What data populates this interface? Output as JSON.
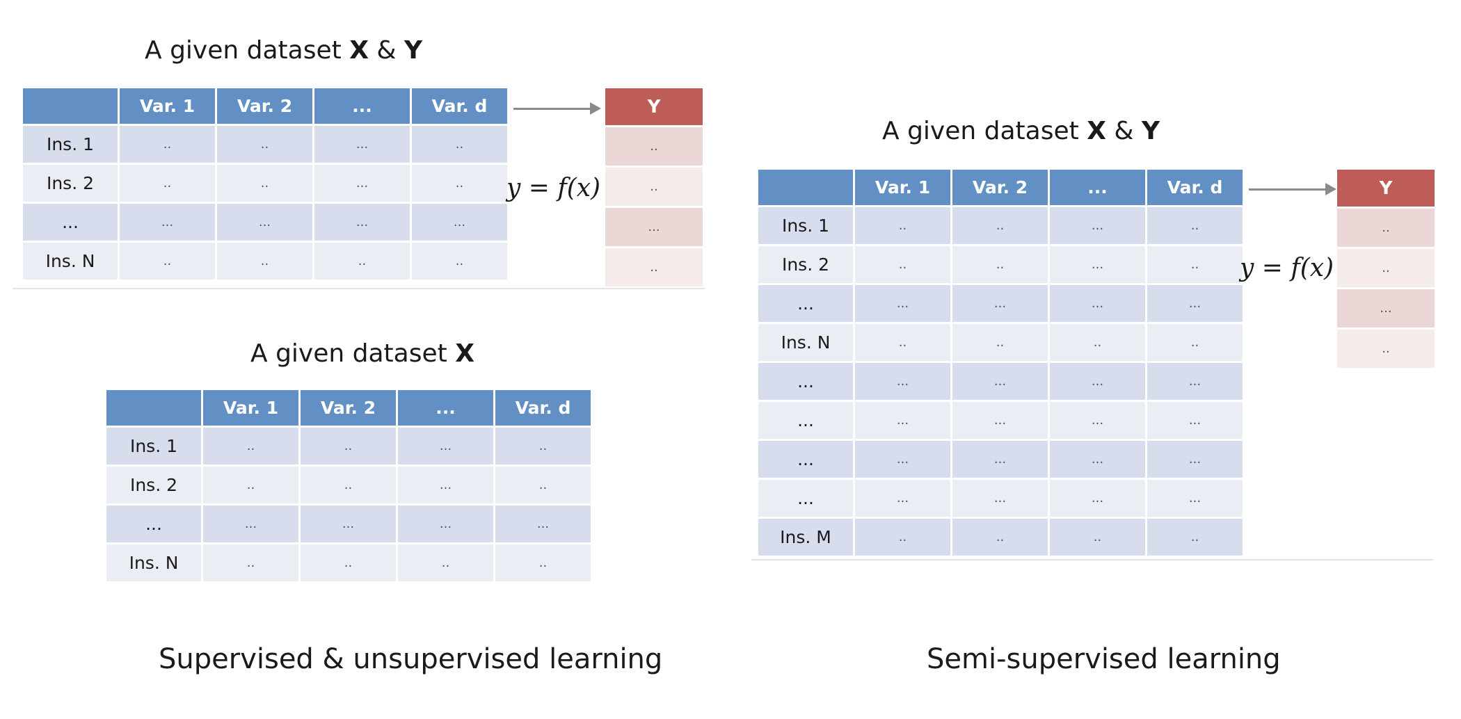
{
  "panel_supervised": {
    "title_prefix": "A given dataset",
    "title_bold_1": "X",
    "title_amp": "&",
    "title_bold_2": "Y",
    "header": [
      "Var. 1",
      "Var. 2",
      "...",
      "Var. d"
    ],
    "rows": [
      [
        "Ins. 1",
        "..",
        "..",
        "...",
        ".."
      ],
      [
        "Ins. 2",
        "..",
        "..",
        "...",
        ".."
      ],
      [
        "...",
        "...",
        "...",
        "...",
        "..."
      ],
      [
        "Ins. N",
        "..",
        "..",
        "..",
        ".."
      ]
    ],
    "y_header": "Y",
    "y_values": [
      "..",
      "..",
      "...",
      ".."
    ],
    "formula": "y = f(x)"
  },
  "panel_unsupervised": {
    "title_prefix": "A given dataset",
    "title_bold": "X",
    "header": [
      "Var. 1",
      "Var. 2",
      "...",
      "Var. d"
    ],
    "rows": [
      [
        "Ins. 1",
        "..",
        "..",
        "...",
        ".."
      ],
      [
        "Ins. 2",
        "..",
        "..",
        "...",
        ".."
      ],
      [
        "...",
        "...",
        "...",
        "...",
        "..."
      ],
      [
        "Ins. N",
        "..",
        "..",
        "..",
        ".."
      ]
    ]
  },
  "panel_semisupervised": {
    "title_prefix": "A given dataset",
    "title_bold_1": "X",
    "title_amp": "&",
    "title_bold_2": "Y",
    "header": [
      "Var. 1",
      "Var. 2",
      "...",
      "Var. d"
    ],
    "rows": [
      [
        "Ins. 1",
        "..",
        "..",
        "...",
        ".."
      ],
      [
        "Ins. 2",
        "..",
        "..",
        "...",
        ".."
      ],
      [
        "...",
        "...",
        "...",
        "...",
        "..."
      ],
      [
        "Ins. N",
        "..",
        "..",
        "..",
        ".."
      ],
      [
        "...",
        "...",
        "...",
        "...",
        "..."
      ],
      [
        "...",
        "...",
        "...",
        "...",
        "..."
      ],
      [
        "...",
        "...",
        "...",
        "...",
        "..."
      ],
      [
        "...",
        "...",
        "...",
        "...",
        "..."
      ],
      [
        "Ins. M",
        "..",
        "..",
        "..",
        ".."
      ]
    ],
    "y_header": "Y",
    "y_values": [
      "..",
      "..",
      "...",
      ".."
    ],
    "formula": "y = f(x)"
  },
  "captions": {
    "left": "Supervised & unsupervised learning",
    "right": "Semi-supervised learning"
  }
}
